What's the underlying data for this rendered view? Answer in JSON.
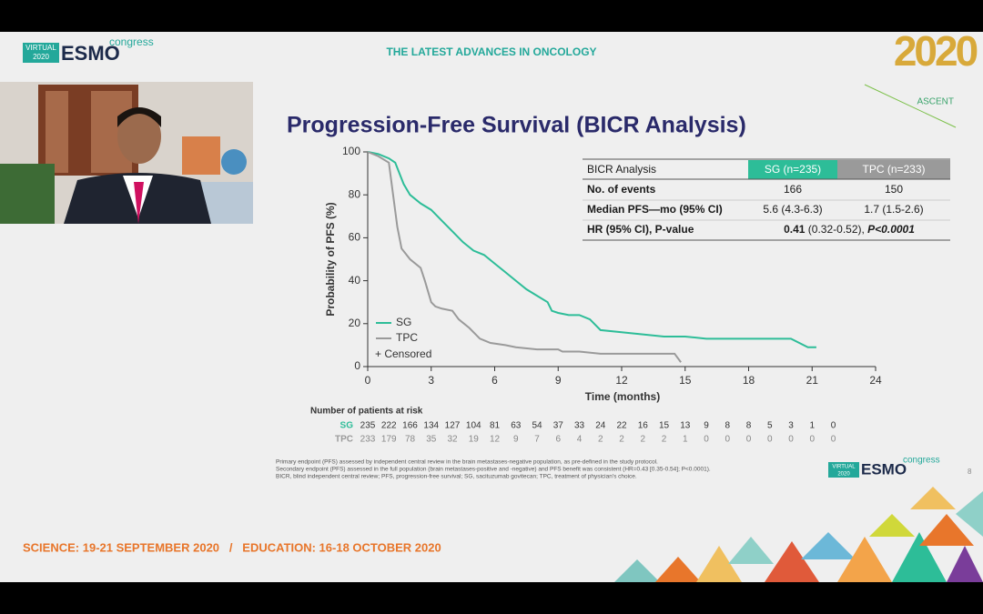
{
  "header": {
    "logo_virtual": [
      "VIRTUAL",
      "2020"
    ],
    "logo_esmo": "ESMO",
    "logo_congress": "congress",
    "tagline": "THE LATEST ADVANCES IN ONCOLOGY",
    "year": "2020",
    "trial": "ASCENT"
  },
  "chart_data": {
    "type": "line",
    "title": "Progression-Free Survival (BICR Analysis)",
    "x_label": "Time (months)",
    "y_label": "Probability of PFS (%)",
    "xlim": [
      0,
      24
    ],
    "xticks": [
      0,
      3,
      6,
      9,
      12,
      15,
      18,
      21,
      24
    ],
    "ylim": [
      0,
      100
    ],
    "yticks": [
      0,
      20,
      40,
      60,
      80,
      100
    ],
    "censored_label": "+ Censored",
    "series": [
      {
        "name": "SG",
        "color": "#2dbd98",
        "x": [
          0,
          0.5,
          1,
          1.3,
          1.5,
          1.7,
          2,
          2.5,
          3,
          3.5,
          4,
          4.5,
          5,
          5.5,
          6,
          6.5,
          7,
          7.5,
          8,
          8.5,
          8.7,
          9,
          9.5,
          10,
          10.5,
          11,
          12,
          13,
          14,
          15,
          16,
          18,
          20,
          20.8,
          21.2
        ],
        "values": [
          100,
          99,
          97,
          95,
          90,
          85,
          80,
          76,
          73,
          68,
          63,
          58,
          54,
          52,
          48,
          44,
          40,
          36,
          33,
          30,
          26,
          25,
          24,
          24,
          22,
          17,
          16,
          15,
          14,
          14,
          13,
          13,
          13,
          9,
          9
        ]
      },
      {
        "name": "TPC",
        "color": "#9a9a9a",
        "x": [
          0,
          0.5,
          1,
          1.2,
          1.4,
          1.6,
          2,
          2.5,
          2.7,
          3,
          3.2,
          3.5,
          4,
          4.3,
          4.8,
          5.3,
          5.8,
          6.5,
          7,
          8,
          9,
          9.2,
          10,
          11,
          14.5,
          14.8
        ],
        "values": [
          100,
          98,
          95,
          80,
          65,
          55,
          50,
          46,
          40,
          30,
          28,
          27,
          26,
          22,
          18,
          13,
          11,
          10,
          9,
          8,
          8,
          7,
          7,
          6,
          6,
          2
        ]
      }
    ],
    "risk_table": {
      "title": "Number of patients at risk",
      "rows": [
        [
          235,
          222,
          166,
          134,
          127,
          104,
          81,
          63,
          54,
          37,
          33,
          24,
          22,
          16,
          15,
          13,
          9,
          8,
          8,
          5,
          3,
          1,
          0
        ],
        [
          233,
          179,
          78,
          35,
          32,
          19,
          12,
          9,
          7,
          6,
          4,
          2,
          2,
          2,
          2,
          1,
          0,
          0,
          0,
          0,
          0,
          0,
          0
        ]
      ]
    }
  },
  "table": {
    "header": [
      "BICR Analysis",
      "SG (n=235)",
      "TPC (n=233)"
    ],
    "rows": [
      [
        "No. of events",
        "166",
        "150"
      ],
      [
        "Median PFS—mo (95% CI)",
        "5.6 (4.3-6.3)",
        "1.7 (1.5-2.6)"
      ]
    ],
    "hr_label": "HR (95% CI), P-value",
    "hr_value": "0.41",
    "hr_ci": " (0.32-0.52), ",
    "hr_p": "P<0.0001"
  },
  "footnotes": [
    "Primary endpoint (PFS) assessed by independent central review in the brain metastases-negative population, as pre-defined in the study protocol.",
    "Secondary endpoint (PFS) assessed in the full population (brain metastases-positive and -negative) and PFS benefit was consistent (HR=0.43 [0.35-0.54]; P<0.0001).",
    "BICR, blind independent central review; PFS, progression-free survival; SG, sacituzumab govitecan; TPC, treatment of physician's choice."
  ],
  "page_number": "8",
  "footer": "SCIENCE: 19-21 SEPTEMBER 2020   /   EDUCATION: 16-18 OCTOBER 2020"
}
